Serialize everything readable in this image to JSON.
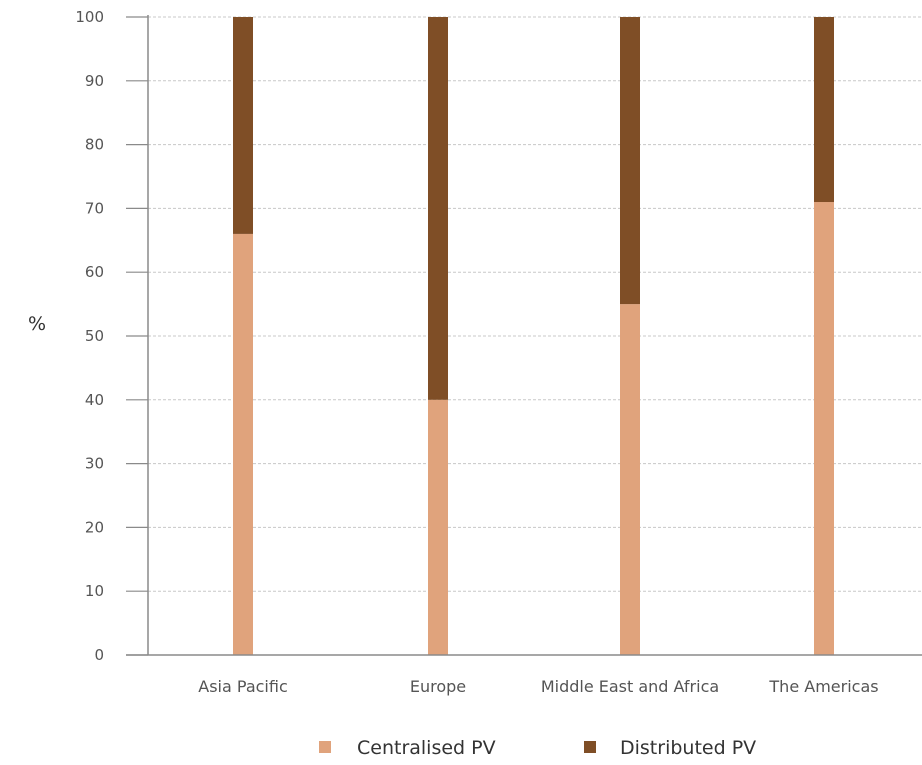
{
  "chart_data": {
    "type": "bar",
    "stacked": true,
    "categories": [
      "Asia Pacific",
      "Europe",
      "Middle East and Africa",
      "The Americas"
    ],
    "series": [
      {
        "name": "Centralised PV",
        "color": "#E0A37C",
        "values": [
          66,
          40,
          55,
          71
        ]
      },
      {
        "name": "Distributed PV",
        "color": "#7F4E26",
        "values": [
          34,
          60,
          45,
          29
        ]
      }
    ],
    "ylabel": "%",
    "ylim": [
      0,
      100
    ],
    "yticks": [
      0,
      10,
      20,
      30,
      40,
      50,
      60,
      70,
      80,
      90,
      100
    ],
    "grid": true,
    "legend_position": "bottom"
  }
}
